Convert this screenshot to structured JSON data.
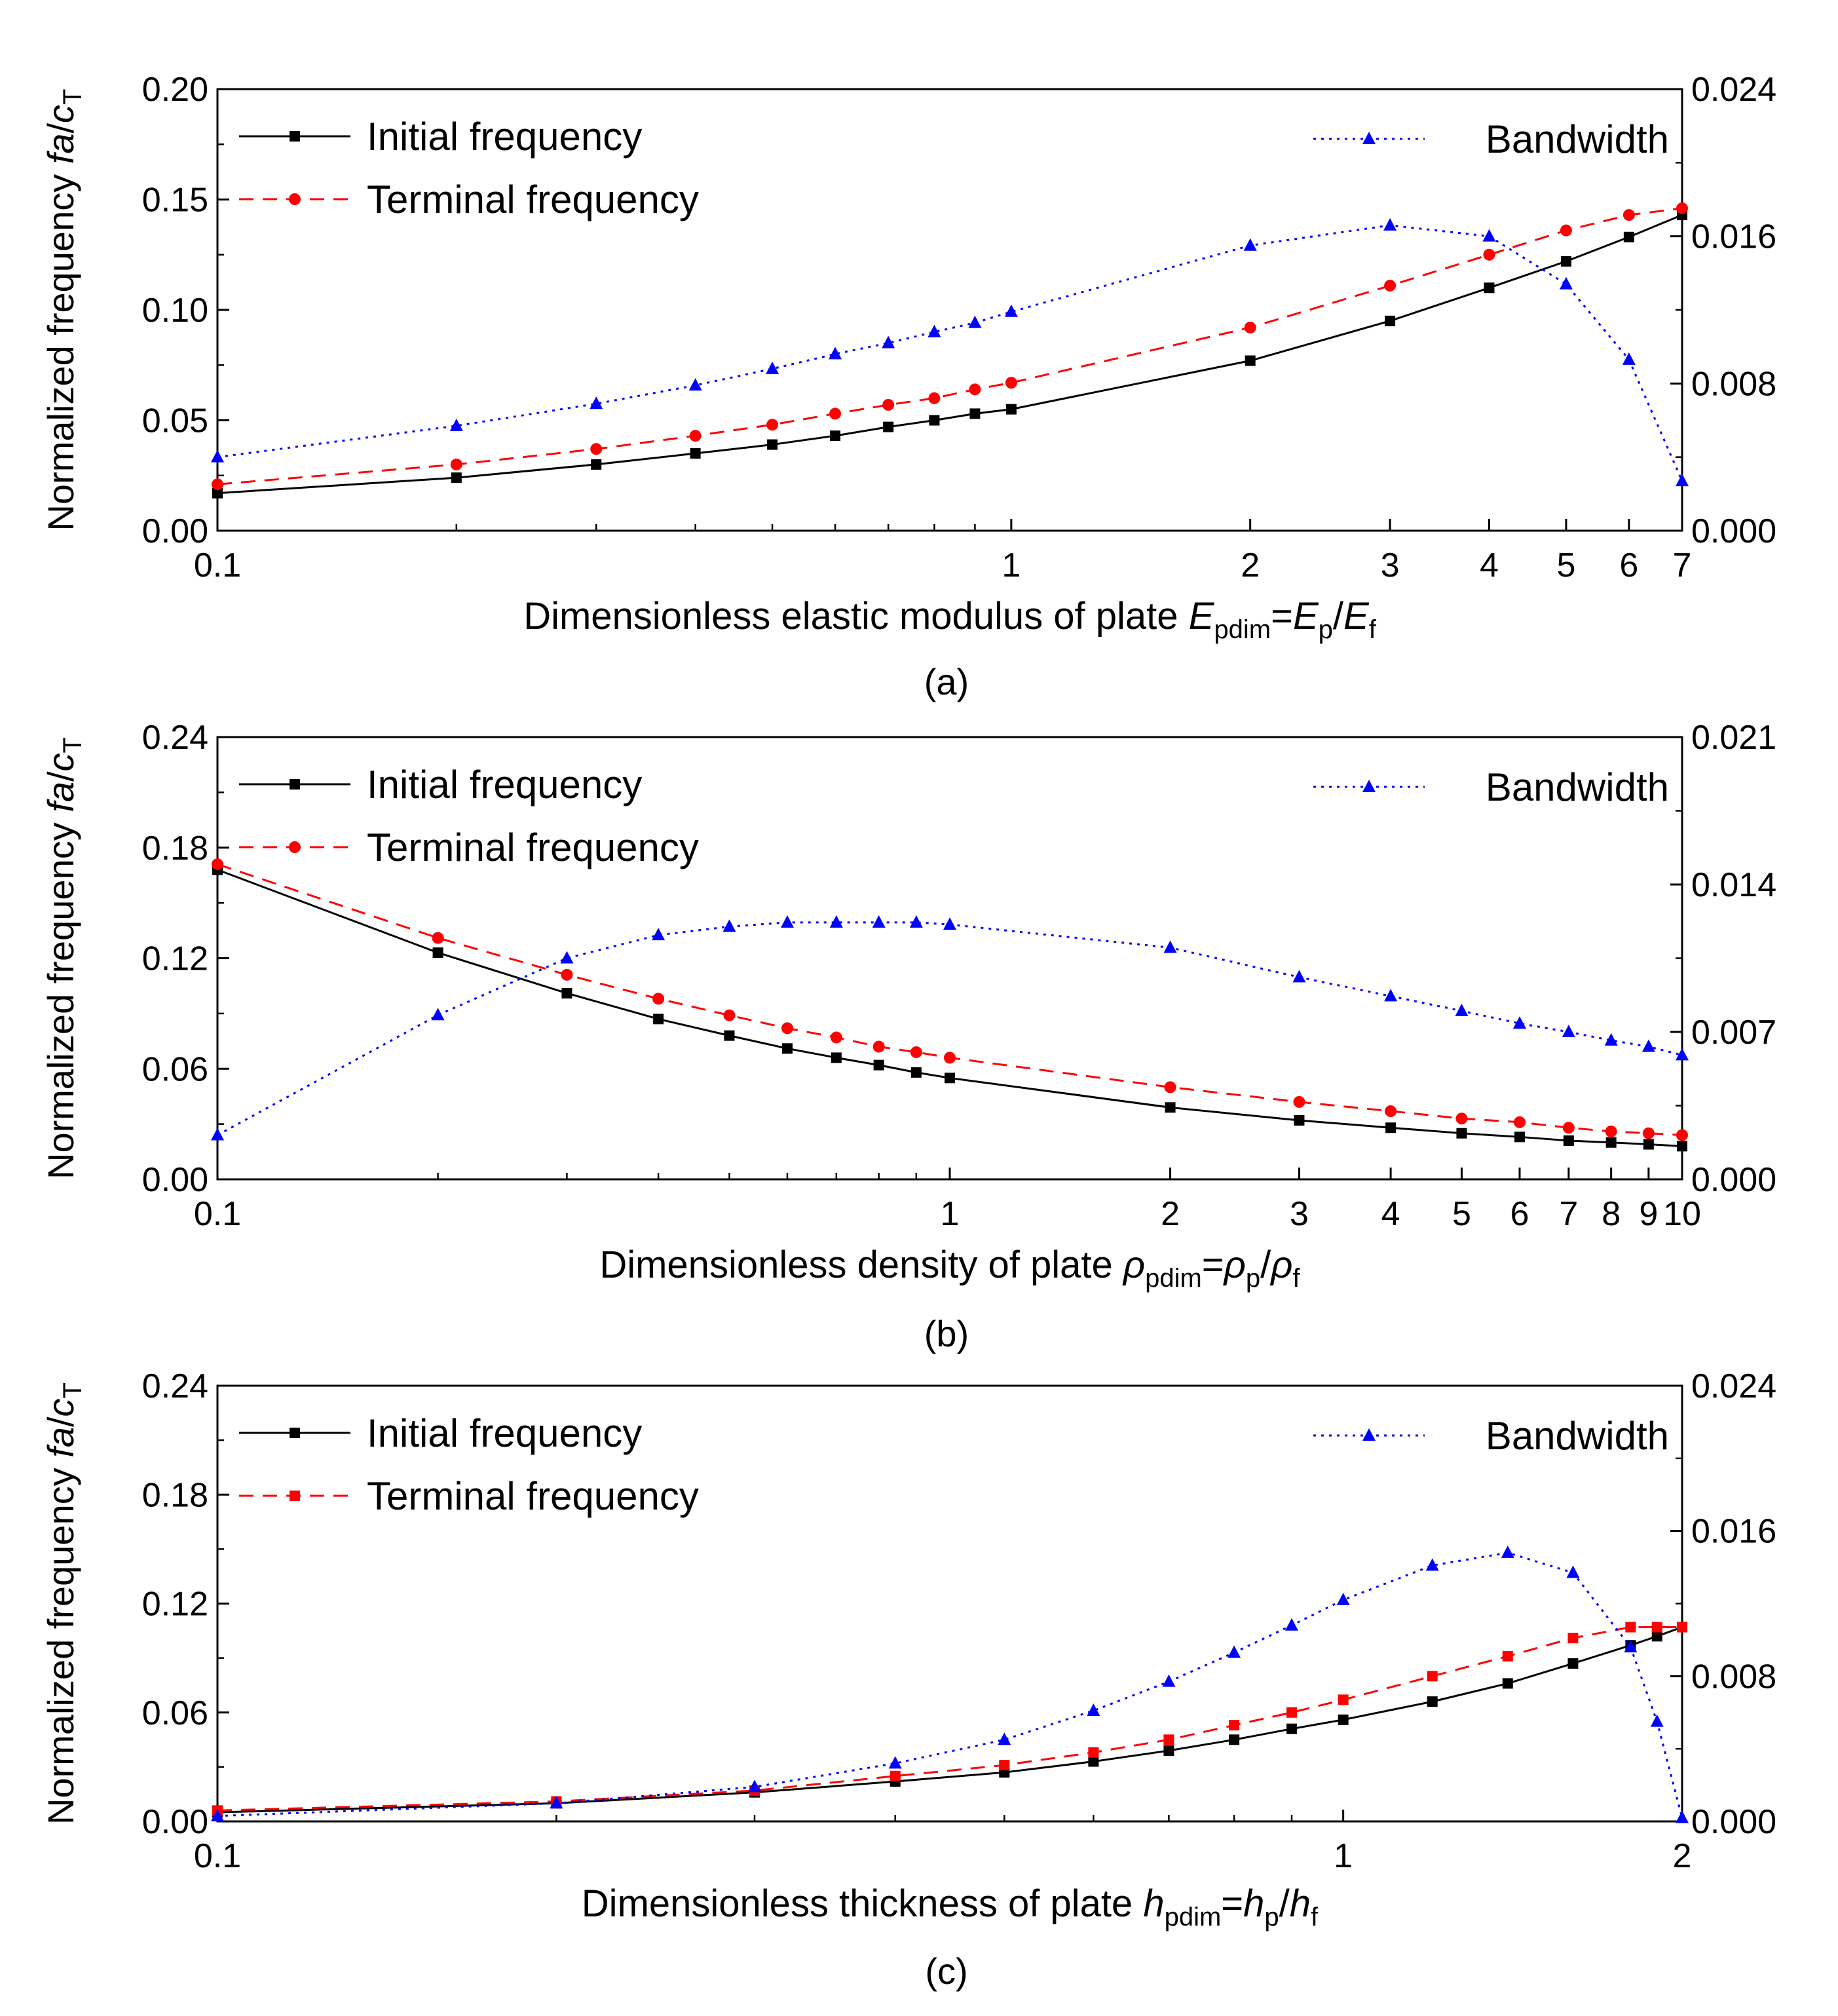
{
  "chart_data": [
    {
      "type": "line",
      "panel": "a",
      "caption": "(a)",
      "xlabel": "Dimensionless elastic modulus of plate ",
      "x_var": "E",
      "x_var_sub": "pdim",
      "x_eq": "=",
      "x_num": "E",
      "x_num_sub": "p",
      "x_slash": "/",
      "x_den": "E",
      "x_den_sub": "f",
      "ylabel": "Normalized frequency ",
      "y_italic": "fa",
      "y_slash": "/",
      "y_c": "c",
      "y_c_sub": "T",
      "xscale": "log",
      "xlim": [
        0.1,
        7
      ],
      "ylim": [
        0,
        0.2
      ],
      "y2lim": [
        0,
        0.024
      ],
      "x_ticks": [
        0.1,
        1,
        2,
        3,
        4,
        5,
        6,
        7
      ],
      "x_tick_labels": [
        "0.1",
        "1",
        "2",
        "3",
        "4",
        "5",
        "6",
        "7"
      ],
      "y_ticks": [
        0,
        0.05,
        0.1,
        0.15,
        0.2
      ],
      "y_tick_labels": [
        "0.00",
        "0.05",
        "0.10",
        "0.15",
        "0.20"
      ],
      "y2_ticks": [
        0,
        0.008,
        0.016,
        0.024
      ],
      "y2_tick_labels": [
        "0.000",
        "0.008",
        "0.016",
        "0.024"
      ],
      "legend_left": [
        "Initial frequency",
        "Terminal frequency"
      ],
      "legend_right": [
        "Bandwidth"
      ],
      "series": [
        {
          "name": "Initial frequency",
          "axis": "left",
          "color": "#000000",
          "marker": "square",
          "dash": "",
          "x": [
            0.1,
            0.2,
            0.3,
            0.4,
            0.5,
            0.6,
            0.7,
            0.8,
            0.9,
            1,
            2,
            3,
            4,
            5,
            6,
            7
          ],
          "y": [
            0.017,
            0.024,
            0.03,
            0.035,
            0.039,
            0.043,
            0.047,
            0.05,
            0.053,
            0.055,
            0.077,
            0.095,
            0.11,
            0.122,
            0.133,
            0.143
          ]
        },
        {
          "name": "Terminal frequency",
          "axis": "left",
          "color": "#ff0000",
          "marker": "circle",
          "dash": "22,14",
          "x": [
            0.1,
            0.2,
            0.3,
            0.4,
            0.5,
            0.6,
            0.7,
            0.8,
            0.9,
            1,
            2,
            3,
            4,
            5,
            6,
            7
          ],
          "y": [
            0.021,
            0.03,
            0.037,
            0.043,
            0.048,
            0.053,
            0.057,
            0.06,
            0.064,
            0.067,
            0.092,
            0.111,
            0.125,
            0.136,
            0.143,
            0.146
          ]
        },
        {
          "name": "Bandwidth",
          "axis": "right",
          "color": "#0000ff",
          "marker": "triangle",
          "dash": "4,8",
          "x": [
            0.1,
            0.2,
            0.3,
            0.4,
            0.5,
            0.6,
            0.7,
            0.8,
            0.9,
            1,
            2,
            3,
            4,
            5,
            6,
            7
          ],
          "y": [
            0.004,
            0.0057,
            0.0069,
            0.0079,
            0.0088,
            0.0096,
            0.0102,
            0.0108,
            0.0113,
            0.0119,
            0.0155,
            0.0166,
            0.016,
            0.0134,
            0.0093,
            0.0027
          ]
        }
      ]
    },
    {
      "type": "line",
      "panel": "b",
      "caption": "(b)",
      "xlabel": "Dimensionless density of plate ",
      "x_var": "ρ",
      "x_var_sub": "pdim",
      "x_eq": "=",
      "x_num": "ρ",
      "x_num_sub": "p",
      "x_slash": "/",
      "x_den": "ρ",
      "x_den_sub": "f",
      "ylabel": "Normalized frequency ",
      "y_italic": "fa",
      "y_slash": "/",
      "y_c": "c",
      "y_c_sub": "T",
      "xscale": "log",
      "xlim": [
        0.1,
        10
      ],
      "ylim": [
        0,
        0.24
      ],
      "y2lim": [
        0,
        0.021
      ],
      "x_ticks": [
        0.1,
        1,
        2,
        3,
        4,
        5,
        6,
        7,
        8,
        9,
        10
      ],
      "x_tick_labels": [
        "0.1",
        "1",
        "2",
        "3",
        "4",
        "5",
        "6",
        "7",
        "8",
        "9",
        "10"
      ],
      "y_ticks": [
        0,
        0.06,
        0.12,
        0.18,
        0.24
      ],
      "y_tick_labels": [
        "0.00",
        "0.06",
        "0.12",
        "0.18",
        "0.24"
      ],
      "y2_ticks": [
        0,
        0.007,
        0.014,
        0.021
      ],
      "y2_tick_labels": [
        "0.000",
        "0.007",
        "0.014",
        "0.021"
      ],
      "legend_left": [
        "Initial frequency",
        "Terminal frequency"
      ],
      "legend_right": [
        "Bandwidth"
      ],
      "series": [
        {
          "name": "Initial frequency",
          "axis": "left",
          "color": "#000000",
          "marker": "square",
          "dash": "",
          "x": [
            0.1,
            0.2,
            0.3,
            0.4,
            0.5,
            0.6,
            0.7,
            0.8,
            0.9,
            1,
            2,
            3,
            4,
            5,
            6,
            7,
            8,
            9,
            10
          ],
          "y": [
            0.168,
            0.123,
            0.101,
            0.087,
            0.078,
            0.071,
            0.066,
            0.062,
            0.058,
            0.055,
            0.039,
            0.032,
            0.028,
            0.025,
            0.023,
            0.021,
            0.02,
            0.019,
            0.018
          ]
        },
        {
          "name": "Terminal frequency",
          "axis": "left",
          "color": "#ff0000",
          "marker": "circle",
          "dash": "22,14",
          "x": [
            0.1,
            0.2,
            0.3,
            0.4,
            0.5,
            0.6,
            0.7,
            0.8,
            0.9,
            1,
            2,
            3,
            4,
            5,
            6,
            7,
            8,
            9,
            10
          ],
          "y": [
            0.171,
            0.131,
            0.111,
            0.098,
            0.089,
            0.082,
            0.077,
            0.072,
            0.069,
            0.066,
            0.05,
            0.042,
            0.037,
            0.033,
            0.031,
            0.028,
            0.026,
            0.025,
            0.024
          ]
        },
        {
          "name": "Bandwidth",
          "axis": "right",
          "color": "#0000ff",
          "marker": "triangle",
          "dash": "4,8",
          "x": [
            0.1,
            0.2,
            0.3,
            0.4,
            0.5,
            0.6,
            0.7,
            0.8,
            0.9,
            1,
            2,
            3,
            4,
            5,
            6,
            7,
            8,
            9,
            10
          ],
          "y": [
            0.0021,
            0.0078,
            0.0105,
            0.0116,
            0.012,
            0.0122,
            0.0122,
            0.0122,
            0.0122,
            0.0121,
            0.011,
            0.0096,
            0.0087,
            0.008,
            0.0074,
            0.007,
            0.0066,
            0.0063,
            0.0059
          ]
        }
      ]
    },
    {
      "type": "line",
      "panel": "c",
      "caption": "(c)",
      "xlabel": "Dimensionless thickness of plate ",
      "x_var": "h",
      "x_var_sub": "pdim",
      "x_eq": "=",
      "x_num": "h",
      "x_num_sub": "p",
      "x_slash": "/",
      "x_den": "h",
      "x_den_sub": "f",
      "ylabel": "Normalized frequency ",
      "y_italic": "fa",
      "y_slash": "/",
      "y_c": "c",
      "y_c_sub": "T",
      "xscale": "log",
      "xlim": [
        0.1,
        2
      ],
      "ylim": [
        0,
        0.24
      ],
      "y2lim": [
        0,
        0.024
      ],
      "x_ticks": [
        0.1,
        1,
        2
      ],
      "x_tick_labels": [
        "0.1",
        "1",
        "2"
      ],
      "y_ticks": [
        0,
        0.06,
        0.12,
        0.18,
        0.24
      ],
      "y_tick_labels": [
        "0.00",
        "0.06",
        "0.12",
        "0.18",
        "0.24"
      ],
      "y2_ticks": [
        0,
        0.008,
        0.016,
        0.024
      ],
      "y2_tick_labels": [
        "0.000",
        "0.008",
        "0.016",
        "0.024"
      ],
      "legend_left": [
        "Initial frequency",
        "Terminal frequency"
      ],
      "legend_right": [
        "Bandwidth"
      ],
      "series": [
        {
          "name": "Initial frequency",
          "axis": "left",
          "color": "#000000",
          "marker": "square",
          "dash": "",
          "x": [
            0.1,
            0.2,
            0.3,
            0.4,
            0.5,
            0.6,
            0.7,
            0.8,
            0.9,
            1,
            1.2,
            1.4,
            1.6,
            1.8,
            1.9,
            2
          ],
          "y": [
            0.005,
            0.01,
            0.016,
            0.022,
            0.027,
            0.033,
            0.039,
            0.045,
            0.051,
            0.056,
            0.066,
            0.076,
            0.087,
            0.097,
            0.102,
            0.107
          ]
        },
        {
          "name": "Terminal frequency",
          "axis": "left",
          "color": "#ff0000",
          "marker": "square",
          "dash": "22,14",
          "x": [
            0.1,
            0.2,
            0.3,
            0.4,
            0.5,
            0.6,
            0.7,
            0.8,
            0.9,
            1,
            1.2,
            1.4,
            1.6,
            1.8,
            1.9,
            2
          ],
          "y": [
            0.006,
            0.011,
            0.017,
            0.025,
            0.031,
            0.038,
            0.045,
            0.053,
            0.06,
            0.067,
            0.08,
            0.091,
            0.101,
            0.107,
            0.107,
            0.107
          ]
        },
        {
          "name": "Bandwidth",
          "axis": "right",
          "color": "#0000ff",
          "marker": "triangle",
          "dash": "4,8",
          "x": [
            0.1,
            0.2,
            0.3,
            0.4,
            0.5,
            0.6,
            0.7,
            0.8,
            0.9,
            1,
            1.2,
            1.4,
            1.6,
            1.8,
            1.9,
            2
          ],
          "y": [
            0.0003,
            0.001,
            0.0019,
            0.0032,
            0.0045,
            0.0061,
            0.0077,
            0.0093,
            0.0108,
            0.0122,
            0.0141,
            0.0148,
            0.0137,
            0.0096,
            0.0055,
            0.0002
          ]
        }
      ]
    }
  ]
}
